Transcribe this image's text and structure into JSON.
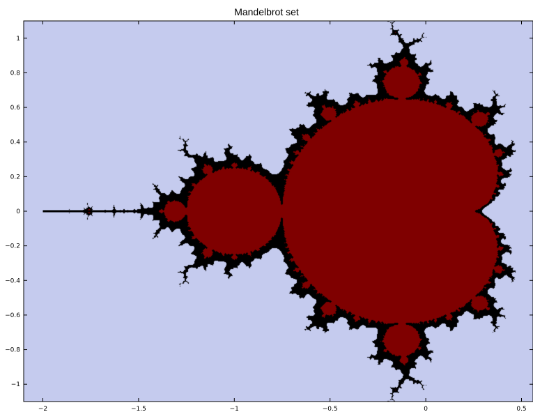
{
  "chart_data": {
    "type": "heatmap",
    "title": "Mandelbrot set",
    "xlabel": "",
    "ylabel": "",
    "xlim": [
      -2.1,
      0.56
    ],
    "ylim": [
      -1.1,
      1.1
    ],
    "x_ticks": [
      -2,
      -1.5,
      -1,
      -0.5,
      0,
      0.5
    ],
    "x_tick_labels": [
      "−2",
      "−1.5",
      "−1",
      "−0.5",
      "0",
      "0.5"
    ],
    "y_ticks": [
      1,
      0.8,
      0.6,
      0.4,
      0.2,
      0,
      -0.2,
      -0.4,
      -0.6,
      -0.8,
      -1
    ],
    "y_tick_labels": [
      "1",
      "0.8",
      "0.6",
      "0.4",
      "0.2",
      "0",
      "−0.2",
      "−0.4",
      "−0.6",
      "−0.8",
      "−1"
    ],
    "grid": false,
    "max_iterations": 80,
    "escape_radius": 2,
    "colors": {
      "outside": "#c5cbee",
      "inside": "#7f0000",
      "boundary": "#000000"
    },
    "antenna": {
      "x_from": -2.0,
      "x_to": -1.4,
      "y": 0
    }
  }
}
